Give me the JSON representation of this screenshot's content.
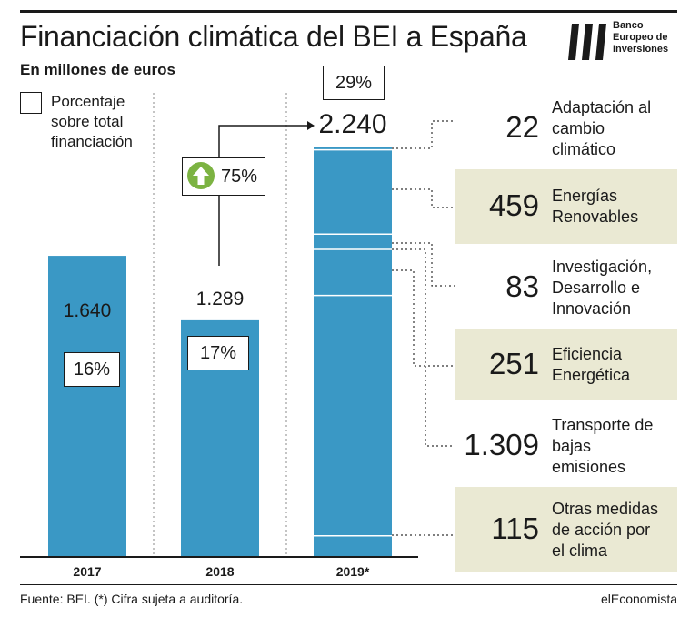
{
  "title": "Financiación climática del BEI a España",
  "subtitle": "En millones de euros",
  "logo": {
    "name": "Banco Europeo de Inversiones",
    "lines": [
      "Banco",
      "Europeo de",
      "Inversiones"
    ]
  },
  "legend": {
    "label_lines": [
      "Porcentaje",
      "sobre total",
      "financiación"
    ]
  },
  "colors": {
    "bar": "#3a98c5",
    "panel_shaded": "#eae9d3",
    "arrow_icon": "#7cb342"
  },
  "growth": {
    "label": "75%",
    "icon": "up-arrow-icon"
  },
  "chart_data": {
    "type": "bar",
    "ylim": [
      0,
      2240
    ],
    "grid": false,
    "categories": [
      "2017",
      "2018",
      "2019*"
    ],
    "bars": [
      {
        "year": "2017",
        "value": 1640,
        "value_label": "1.640",
        "pct_label": "16%"
      },
      {
        "year": "2018",
        "value": 1289,
        "value_label": "1.289",
        "pct_label": "17%"
      },
      {
        "year": "2019*",
        "value": 2240,
        "value_label": "2.240",
        "pct_label": "29%"
      }
    ],
    "breakdown_2019": [
      {
        "value": 22,
        "value_label": "22",
        "label_lines": [
          "Adaptación al",
          "cambio",
          "climático"
        ],
        "shaded": false
      },
      {
        "value": 459,
        "value_label": "459",
        "label_lines": [
          "Energías",
          "Renovables"
        ],
        "shaded": true
      },
      {
        "value": 83,
        "value_label": "83",
        "label_lines": [
          "Investigación,",
          "Desarrollo e",
          "Innovación"
        ],
        "shaded": false
      },
      {
        "value": 251,
        "value_label": "251",
        "label_lines": [
          "Eficiencia",
          "Energética"
        ],
        "shaded": true
      },
      {
        "value": 1309,
        "value_label": "1.309",
        "label_lines": [
          "Transporte de",
          "bajas",
          "emisiones"
        ],
        "shaded": false
      },
      {
        "value": 115,
        "value_label": "115",
        "label_lines": [
          "Otras medidas",
          "de acción por",
          "el clima"
        ],
        "shaded": true
      }
    ]
  },
  "footer": {
    "source": "Fuente: BEI. (*) Cifra sujeta a auditoría.",
    "brand": "elEconomista"
  }
}
